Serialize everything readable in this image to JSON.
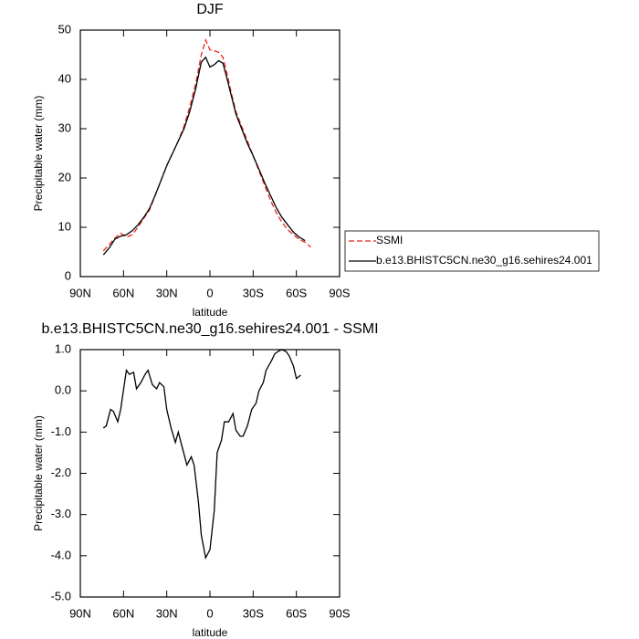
{
  "chart_data": [
    {
      "type": "line",
      "title": "DJF",
      "xlabel": "latitude",
      "ylabel": "Precipitable water (mm)",
      "x": [
        74,
        70,
        66,
        62,
        58,
        54,
        50,
        46,
        42,
        38,
        34,
        30,
        26,
        22,
        18,
        14,
        10,
        6,
        3,
        0,
        -3,
        -6,
        -9,
        -12,
        -15,
        -18,
        -22,
        -26,
        -30,
        -34,
        -38,
        -42,
        -46,
        -50,
        -54,
        -58,
        -62,
        -66,
        -70
      ],
      "series": [
        {
          "name": "SSMI",
          "color": "#e8231c",
          "line_style": "dashed",
          "values": [
            5.2,
            6.5,
            7.8,
            8.8,
            8,
            8.5,
            10,
            11.8,
            13.5,
            16.5,
            19.5,
            22.5,
            25,
            27.5,
            30.5,
            34.5,
            39,
            45,
            48,
            46,
            45.8,
            45.5,
            44.5,
            41,
            37,
            33.5,
            30.5,
            27.5,
            24.5,
            21.5,
            18.5,
            15.5,
            13,
            11,
            9.5,
            8.5,
            7.5,
            7,
            6
          ]
        },
        {
          "name": "b.e13.BHISTC5CN.ne30_g16.sehires24.001",
          "color": "#000000",
          "line_style": "solid",
          "values": [
            4.4,
            5.8,
            7.6,
            8.2,
            8.5,
            9.3,
            10.5,
            12,
            13.8,
            16.5,
            19.5,
            22.5,
            25,
            27.5,
            30,
            33.5,
            38,
            43.5,
            44.5,
            42.5,
            43,
            43.8,
            43.3,
            40,
            36.5,
            33,
            30,
            27,
            24.5,
            21.8,
            19,
            16.5,
            14,
            12,
            10.5,
            9,
            8,
            7.3,
            null
          ]
        }
      ],
      "xlim": [
        90,
        -90
      ],
      "xticks": [
        {
          "value": 90,
          "label": "90N"
        },
        {
          "value": 60,
          "label": "60N"
        },
        {
          "value": 30,
          "label": "30N"
        },
        0,
        {
          "value": -30,
          "label": "30S"
        },
        {
          "value": -60,
          "label": "60S"
        },
        {
          "value": -90,
          "label": "90S"
        }
      ],
      "ylim": [
        0,
        50
      ],
      "yticks": [
        0,
        10,
        20,
        30,
        40,
        50
      ],
      "legend": "outside-right"
    },
    {
      "type": "line",
      "title": "b.e13.BHISTC5CN.ne30_g16.sehires24.001 - SSMI",
      "xlabel": "latitude",
      "ylabel": "Precipitable water (mm)",
      "x": [
        74,
        72,
        69,
        67,
        64,
        62,
        58,
        56,
        53,
        51,
        48,
        45,
        43,
        40,
        37,
        35,
        32,
        30,
        27,
        24,
        22,
        19,
        16,
        13,
        11,
        8,
        6,
        3,
        0,
        -3,
        -5,
        -8,
        -10,
        -13,
        -16,
        -18,
        -21,
        -23,
        -26,
        -29,
        -32,
        -34,
        -37,
        -39,
        -43,
        -45,
        -48,
        -50,
        -53,
        -55,
        -58,
        -60,
        -63
      ],
      "series": [
        {
          "color": "#000000",
          "line_style": "solid",
          "values": [
            -0.9,
            -0.85,
            -0.45,
            -0.5,
            -0.75,
            -0.45,
            0.5,
            0.4,
            0.45,
            0.05,
            0.2,
            0.4,
            0.5,
            0.15,
            0.05,
            0.2,
            0.1,
            -0.45,
            -0.9,
            -1.25,
            -1.0,
            -1.4,
            -1.8,
            -1.6,
            -1.8,
            -2.7,
            -3.5,
            -4.05,
            -3.85,
            -2.9,
            -1.5,
            -1.2,
            -0.75,
            -0.75,
            -0.55,
            -0.95,
            -1.1,
            -1.1,
            -0.85,
            -0.45,
            -0.3,
            0.0,
            0.2,
            0.5,
            0.75,
            0.9,
            0.97,
            1.0,
            0.95,
            0.85,
            0.6,
            0.3,
            0.38
          ]
        }
      ],
      "xlim": [
        90,
        -90
      ],
      "xticks": [
        {
          "value": 90,
          "label": "90N"
        },
        {
          "value": 60,
          "label": "60N"
        },
        {
          "value": 30,
          "label": "30N"
        },
        0,
        {
          "value": -30,
          "label": "30S"
        },
        {
          "value": -60,
          "label": "60S"
        },
        {
          "value": -90,
          "label": "90S"
        }
      ],
      "ylim": [
        -5,
        1
      ],
      "yticks": [
        {
          "value": -5,
          "label": "-5.0"
        },
        {
          "value": -4,
          "label": "-4.0"
        },
        {
          "value": -3,
          "label": "-3.0"
        },
        {
          "value": -2,
          "label": "-2.0"
        },
        {
          "value": -1,
          "label": "-1.0"
        },
        {
          "value": 0,
          "label": "0.0"
        },
        {
          "value": 1,
          "label": "1.0"
        }
      ]
    }
  ]
}
